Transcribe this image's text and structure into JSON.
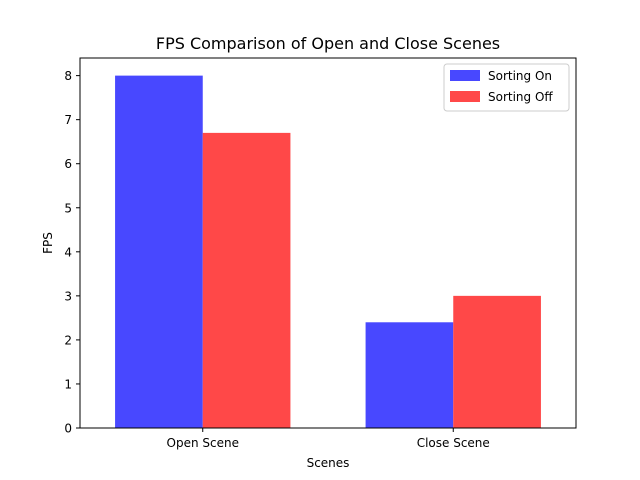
{
  "chart_data": {
    "type": "bar",
    "title": "FPS Comparison of Open and Close Scenes",
    "xlabel": "Scenes",
    "ylabel": "FPS",
    "categories": [
      "Open Scene",
      "Close Scene"
    ],
    "series": [
      {
        "name": "Sorting On",
        "values": [
          8.0,
          2.4
        ],
        "color": "#4848ff"
      },
      {
        "name": "Sorting Off",
        "values": [
          6.7,
          3.0
        ],
        "color": "#ff4848"
      }
    ],
    "ylim": [
      0,
      8.4
    ],
    "yticks": [
      0,
      1,
      2,
      3,
      4,
      5,
      6,
      7,
      8
    ],
    "grid": false,
    "legend_position": "top-right"
  }
}
